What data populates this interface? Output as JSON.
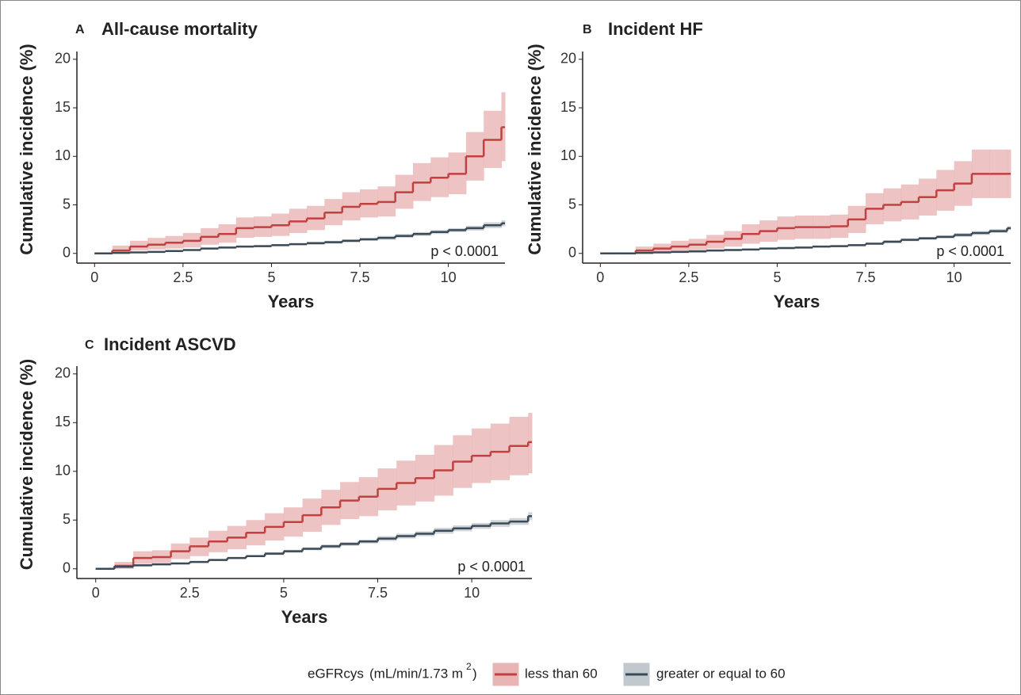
{
  "chart_data": [
    {
      "type": "step",
      "panel_label": "A",
      "title": "All-cause mortality",
      "xlabel": "Years",
      "ylabel": "Cumulative incidence (%)",
      "annotation": "p < 0.0001",
      "x": [
        0,
        0.5,
        1,
        1.5,
        2,
        2.5,
        3,
        3.5,
        4,
        4.5,
        5,
        5.5,
        6,
        6.5,
        7,
        7.5,
        8,
        8.5,
        9,
        9.5,
        10,
        10.5,
        11,
        11.5
      ],
      "series": [
        {
          "values": [
            0,
            0.3,
            0.7,
            0.9,
            1.1,
            1.3,
            1.7,
            2.0,
            2.6,
            2.7,
            2.9,
            3.3,
            3.6,
            4.2,
            4.8,
            5.1,
            5.3,
            6.3,
            7.3,
            7.8,
            8.2,
            10.0,
            11.7,
            13.0
          ],
          "lower": [
            0,
            0,
            0.3,
            0.4,
            0.5,
            0.6,
            0.9,
            1.1,
            1.6,
            1.7,
            1.8,
            2.1,
            2.4,
            2.9,
            3.4,
            3.7,
            3.8,
            4.6,
            5.4,
            5.8,
            6.1,
            7.5,
            8.8,
            9.5
          ],
          "upper": [
            0,
            0.8,
            1.3,
            1.6,
            1.8,
            2.1,
            2.6,
            3.0,
            3.7,
            3.8,
            4.1,
            4.6,
            4.9,
            5.6,
            6.3,
            6.6,
            6.9,
            8.1,
            9.3,
            9.9,
            10.4,
            12.5,
            14.7,
            16.6
          ]
        },
        {
          "values": [
            0,
            0.05,
            0.1,
            0.15,
            0.25,
            0.35,
            0.5,
            0.6,
            0.7,
            0.75,
            0.85,
            0.95,
            1.05,
            1.15,
            1.3,
            1.45,
            1.6,
            1.8,
            2.0,
            2.2,
            2.4,
            2.6,
            2.9,
            3.1
          ],
          "lower": [
            0,
            0,
            0.05,
            0.1,
            0.2,
            0.3,
            0.4,
            0.5,
            0.6,
            0.65,
            0.75,
            0.85,
            0.9,
            1.0,
            1.15,
            1.3,
            1.4,
            1.6,
            1.8,
            2.0,
            2.2,
            2.35,
            2.6,
            2.8
          ],
          "upper": [
            0,
            0.1,
            0.15,
            0.2,
            0.3,
            0.4,
            0.6,
            0.7,
            0.8,
            0.85,
            0.95,
            1.05,
            1.2,
            1.3,
            1.45,
            1.6,
            1.8,
            2.0,
            2.2,
            2.4,
            2.6,
            2.85,
            3.2,
            3.4
          ]
        }
      ],
      "xlim": [
        -0.5,
        11.6
      ],
      "ylim": [
        -1,
        20.8
      ],
      "xticks": [
        0,
        2.5,
        5,
        7.5,
        10
      ],
      "yticks": [
        0,
        5,
        10,
        15,
        20
      ]
    },
    {
      "type": "step",
      "panel_label": "B",
      "title": "Incident HF",
      "xlabel": "Years",
      "ylabel": "Cumulative incidence (%)",
      "annotation": "p < 0.0001",
      "x": [
        0,
        0.5,
        1,
        1.5,
        2,
        2.5,
        3,
        3.5,
        4,
        4.5,
        5,
        5.5,
        6,
        6.5,
        7,
        7.5,
        8,
        8.5,
        9,
        9.5,
        10,
        10.5,
        11,
        11.5
      ],
      "series": [
        {
          "values": [
            0,
            0,
            0.3,
            0.5,
            0.7,
            0.9,
            1.2,
            1.5,
            2.0,
            2.3,
            2.6,
            2.7,
            2.7,
            2.8,
            3.5,
            4.6,
            5.0,
            5.3,
            5.8,
            6.5,
            7.2,
            8.2,
            8.2,
            8.2
          ],
          "lower": [
            0,
            0,
            0,
            0.1,
            0.2,
            0.3,
            0.5,
            0.7,
            1.0,
            1.2,
            1.4,
            1.5,
            1.5,
            1.6,
            2.1,
            3.0,
            3.3,
            3.5,
            3.9,
            4.4,
            4.9,
            5.7,
            5.7,
            5.7
          ],
          "upper": [
            0,
            0,
            0.7,
            1.0,
            1.3,
            1.5,
            1.9,
            2.3,
            3.0,
            3.4,
            3.8,
            3.9,
            3.9,
            4.0,
            4.9,
            6.2,
            6.7,
            7.1,
            7.7,
            8.6,
            9.5,
            10.7,
            10.7,
            10.7
          ]
        },
        {
          "values": [
            0,
            0,
            0.05,
            0.1,
            0.15,
            0.2,
            0.3,
            0.35,
            0.4,
            0.5,
            0.55,
            0.6,
            0.7,
            0.75,
            0.85,
            1.0,
            1.2,
            1.4,
            1.55,
            1.7,
            1.9,
            2.1,
            2.3,
            2.6
          ],
          "lower": [
            0,
            0,
            0,
            0.05,
            0.1,
            0.15,
            0.2,
            0.25,
            0.3,
            0.4,
            0.45,
            0.5,
            0.6,
            0.65,
            0.75,
            0.9,
            1.05,
            1.25,
            1.4,
            1.55,
            1.7,
            1.9,
            2.1,
            2.4
          ],
          "upper": [
            0,
            0,
            0.1,
            0.15,
            0.2,
            0.25,
            0.4,
            0.45,
            0.5,
            0.6,
            0.65,
            0.7,
            0.8,
            0.85,
            0.95,
            1.1,
            1.35,
            1.55,
            1.7,
            1.85,
            2.1,
            2.3,
            2.5,
            2.8
          ]
        }
      ],
      "xlim": [
        -0.5,
        11.6
      ],
      "ylim": [
        -1,
        20.8
      ],
      "xticks": [
        0,
        2.5,
        5,
        7.5,
        10
      ],
      "yticks": [
        0,
        5,
        10,
        15,
        20
      ]
    },
    {
      "type": "step",
      "panel_label": "C",
      "title": "Incident ASCVD",
      "xlabel": "Years",
      "ylabel": "Cumulative incidence (%)",
      "annotation": "p < 0.0001",
      "x": [
        0,
        0.5,
        1,
        1.5,
        2,
        2.5,
        3,
        3.5,
        4,
        4.5,
        5,
        5.5,
        6,
        6.5,
        7,
        7.5,
        8,
        8.5,
        9,
        9.5,
        10,
        10.5,
        11,
        11.5
      ],
      "series": [
        {
          "values": [
            0,
            0.3,
            1.1,
            1.2,
            1.8,
            2.3,
            2.8,
            3.2,
            3.7,
            4.3,
            4.8,
            5.5,
            6.3,
            7.0,
            7.4,
            8.2,
            8.8,
            9.3,
            10.1,
            11.0,
            11.6,
            12.0,
            12.6,
            13.0
          ],
          "lower": [
            0,
            0,
            0.5,
            0.6,
            1.0,
            1.3,
            1.7,
            2.0,
            2.4,
            2.9,
            3.3,
            3.8,
            4.5,
            5.1,
            5.4,
            6.0,
            6.5,
            6.9,
            7.5,
            8.3,
            8.8,
            9.1,
            9.6,
            9.8
          ],
          "upper": [
            0,
            0.7,
            1.8,
            1.9,
            2.6,
            3.2,
            3.9,
            4.4,
            5.0,
            5.7,
            6.3,
            7.2,
            8.1,
            8.9,
            9.4,
            10.3,
            11.1,
            11.7,
            12.7,
            13.7,
            14.4,
            14.9,
            15.6,
            16.0
          ]
        },
        {
          "values": [
            0,
            0.2,
            0.35,
            0.45,
            0.55,
            0.7,
            0.9,
            1.1,
            1.3,
            1.55,
            1.8,
            2.05,
            2.3,
            2.55,
            2.8,
            3.1,
            3.35,
            3.6,
            3.9,
            4.15,
            4.4,
            4.65,
            4.85,
            5.4
          ],
          "lower": [
            0,
            0.1,
            0.25,
            0.35,
            0.45,
            0.6,
            0.8,
            1.0,
            1.2,
            1.4,
            1.65,
            1.9,
            2.1,
            2.35,
            2.6,
            2.85,
            3.1,
            3.35,
            3.6,
            3.85,
            4.1,
            4.3,
            4.5,
            5.0
          ],
          "upper": [
            0,
            0.3,
            0.45,
            0.55,
            0.65,
            0.8,
            1.0,
            1.2,
            1.4,
            1.7,
            1.95,
            2.2,
            2.5,
            2.75,
            3.0,
            3.35,
            3.6,
            3.85,
            4.2,
            4.45,
            4.7,
            5.0,
            5.2,
            5.8
          ]
        }
      ],
      "xlim": [
        -0.5,
        11.6
      ],
      "ylim": [
        -1,
        20.8
      ],
      "xticks": [
        0,
        2.5,
        5,
        7.5,
        10
      ],
      "yticks": [
        0,
        5,
        10,
        15,
        20
      ]
    }
  ],
  "legend": {
    "title": "eGFRcys",
    "unit": "(mL/min/1.73 m",
    "unit_sup": "2",
    "unit_end": ")",
    "entries": [
      {
        "name": "less than 60",
        "color": "#c0413f",
        "band": "#e8b4b4"
      },
      {
        "name": "greater or equal to 60",
        "color": "#3b4a56",
        "band": "#c2c9ce"
      }
    ]
  }
}
